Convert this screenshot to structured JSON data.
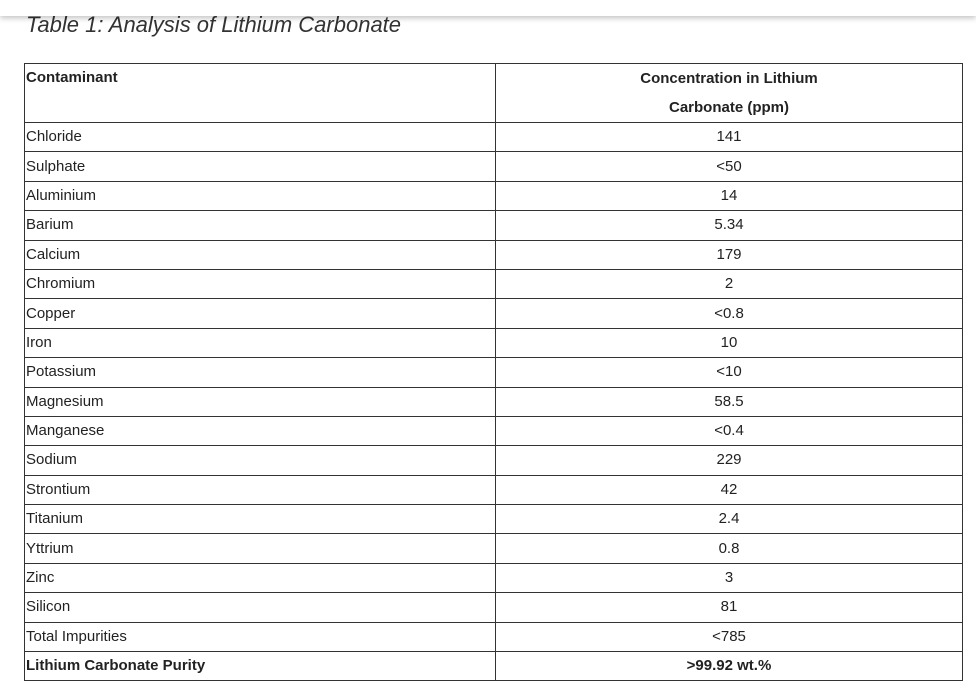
{
  "title": "Table 1: Analysis of Lithium Carbonate",
  "table": {
    "header": [
      "Contaminant",
      "Concentration in Lithium Carbonate (ppm)"
    ],
    "rows": [
      [
        "Chloride",
        "141"
      ],
      [
        "Sulphate",
        "<50"
      ],
      [
        "Aluminium",
        "14"
      ],
      [
        "Barium",
        "5.34"
      ],
      [
        "Calcium",
        "179"
      ],
      [
        "Chromium",
        "2"
      ],
      [
        "Copper",
        "<0.8"
      ],
      [
        "Iron",
        "10"
      ],
      [
        "Potassium",
        "<10"
      ],
      [
        "Magnesium",
        "58.5"
      ],
      [
        "Manganese",
        "<0.4"
      ],
      [
        "Sodium",
        "229"
      ],
      [
        "Strontium",
        "42"
      ],
      [
        "Titanium",
        "2.4"
      ],
      [
        "Yttrium",
        "0.8"
      ],
      [
        "Zinc",
        "3"
      ],
      [
        "Silicon",
        "81"
      ],
      [
        "Total Impurities",
        "<785"
      ],
      [
        "Lithium Carbonate Purity",
        ">99.92 wt.%"
      ]
    ]
  }
}
